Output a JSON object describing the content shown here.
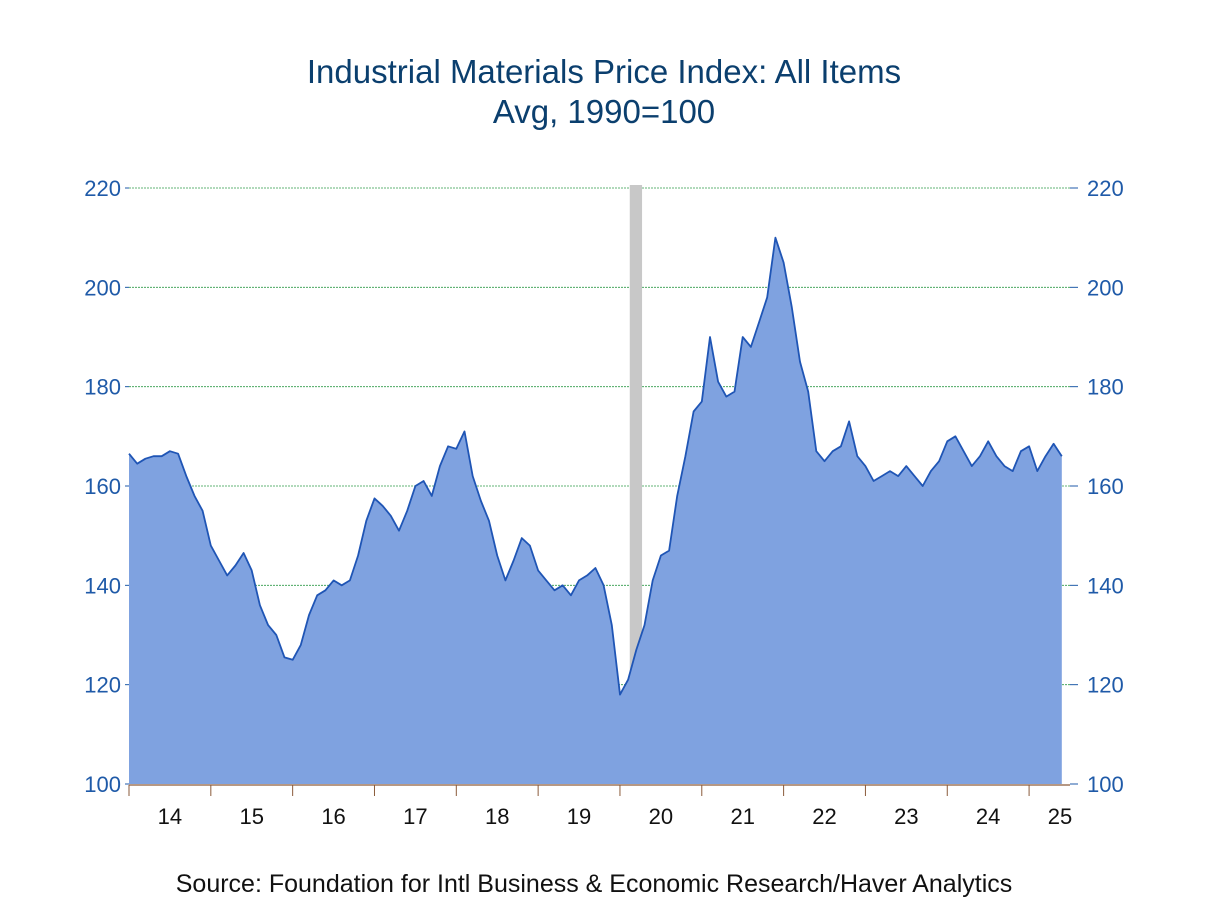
{
  "chart_data": {
    "type": "area",
    "title": "Industrial Materials Price Index: All Items",
    "subtitle": "Avg, 1990=100",
    "source": "Source:  Foundation for Intl Business & Economic Research/Haver Analytics",
    "ylim": [
      100,
      220
    ],
    "yticks": [
      "100",
      "120",
      "140",
      "160",
      "180",
      "200",
      "220"
    ],
    "xlim": [
      2014.0,
      2025.5
    ],
    "xtick_labels": [
      {
        "label": "14",
        "x": 2014.5
      },
      {
        "label": "15",
        "x": 2015.5
      },
      {
        "label": "16",
        "x": 2016.5
      },
      {
        "label": "17",
        "x": 2017.5
      },
      {
        "label": "18",
        "x": 2018.5
      },
      {
        "label": "19",
        "x": 2019.5
      },
      {
        "label": "20",
        "x": 2020.5
      },
      {
        "label": "21",
        "x": 2021.5
      },
      {
        "label": "22",
        "x": 2022.5
      },
      {
        "label": "23",
        "x": 2023.5
      },
      {
        "label": "24",
        "x": 2024.5
      },
      {
        "label": "25",
        "x": 2025.5
      }
    ],
    "recession": [
      2020.12,
      2020.27
    ],
    "grid": true,
    "colors": {
      "fill": "#7fa2e0",
      "line": "#1f55b5",
      "grid": "#2e9a48",
      "recession": "#c8c8c8",
      "axis_text": "#1f5aa8",
      "title": "#0b3f6e"
    },
    "series": [
      {
        "x": [
          2014.0,
          2014.1,
          2014.2,
          2014.3,
          2014.4,
          2014.5,
          2014.6,
          2014.7,
          2014.8,
          2014.9,
          2015.0,
          2015.1,
          2015.2,
          2015.3,
          2015.4,
          2015.5,
          2015.6,
          2015.7,
          2015.8,
          2015.9,
          2016.0,
          2016.1,
          2016.2,
          2016.3,
          2016.4,
          2016.5,
          2016.6,
          2016.7,
          2016.8,
          2016.9,
          2017.0,
          2017.1,
          2017.2,
          2017.3,
          2017.4,
          2017.5,
          2017.6,
          2017.7,
          2017.8,
          2017.9,
          2018.0,
          2018.1,
          2018.2,
          2018.3,
          2018.4,
          2018.5,
          2018.6,
          2018.7,
          2018.8,
          2018.9,
          2019.0,
          2019.1,
          2019.2,
          2019.3,
          2019.4,
          2019.5,
          2019.6,
          2019.7,
          2019.8,
          2019.9,
          2020.0,
          2020.1,
          2020.2,
          2020.3,
          2020.4,
          2020.5,
          2020.6,
          2020.7,
          2020.8,
          2020.9,
          2021.0,
          2021.1,
          2021.2,
          2021.3,
          2021.4,
          2021.5,
          2021.6,
          2021.7,
          2021.8,
          2021.9,
          2022.0,
          2022.1,
          2022.2,
          2022.3,
          2022.4,
          2022.5,
          2022.6,
          2022.7,
          2022.8,
          2022.9,
          2023.0,
          2023.1,
          2023.2,
          2023.3,
          2023.4,
          2023.5,
          2023.6,
          2023.7,
          2023.8,
          2023.9,
          2024.0,
          2024.1,
          2024.2,
          2024.3,
          2024.4,
          2024.5,
          2024.6,
          2024.7,
          2024.8,
          2024.9,
          2025.0,
          2025.1,
          2025.2,
          2025.3,
          2025.4
        ],
        "values": [
          166.5,
          164.5,
          165.5,
          166,
          166,
          167,
          166.5,
          162,
          158,
          155,
          148,
          145,
          142,
          144,
          146.5,
          143,
          136,
          132,
          130,
          125.5,
          125,
          128,
          134,
          138,
          139,
          141,
          140,
          141,
          146,
          153,
          157.5,
          156,
          154,
          151,
          155,
          160,
          161,
          158,
          164,
          168,
          167.5,
          171,
          162,
          157,
          153,
          146,
          141,
          145,
          149.5,
          148,
          143,
          141,
          139,
          140,
          138,
          141,
          142,
          143.5,
          140,
          132,
          118,
          121,
          127,
          132,
          141,
          146,
          147,
          158,
          166,
          175,
          177,
          190,
          181,
          178,
          179,
          190,
          188,
          193,
          198,
          210,
          205,
          196,
          185,
          179,
          167,
          165,
          167,
          168,
          173,
          166,
          164,
          161,
          162,
          163,
          162,
          164,
          162,
          160,
          163,
          165,
          169,
          170,
          167,
          164,
          166,
          169,
          166,
          164,
          163,
          167,
          168,
          163,
          166,
          168.5,
          166
        ]
      }
    ]
  }
}
